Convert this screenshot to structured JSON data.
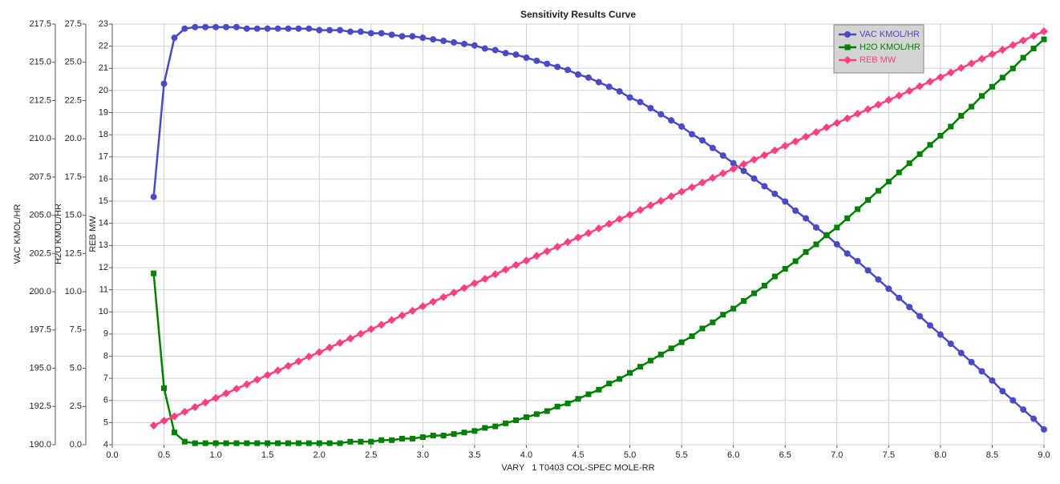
{
  "chart_data": {
    "type": "line",
    "title": "Sensitivity Results Curve",
    "x_label": "VARY   1 T0403 COL-SPEC MOLE-RR",
    "y_label": "VAC KMOL/HR",
    "y2_label": "H2O KMOL/HR",
    "y3_label": "REB MW",
    "x": [
      0.4,
      0.5,
      0.6,
      0.7,
      0.8,
      0.9,
      1.0,
      1.1,
      1.2,
      1.3,
      1.4,
      1.5,
      1.6,
      1.7,
      1.8,
      1.9,
      2.0,
      2.1,
      2.2,
      2.3,
      2.4,
      2.5,
      2.6,
      2.7,
      2.8,
      2.9,
      3.0,
      3.1,
      3.2,
      3.3,
      3.4,
      3.5,
      3.6,
      3.7,
      3.8,
      3.9,
      4.0,
      4.1,
      4.2,
      4.3,
      4.4,
      4.5,
      4.6,
      4.7,
      4.8,
      4.9,
      5.0,
      5.1,
      5.2,
      5.3,
      5.4,
      5.5,
      5.6,
      5.7,
      5.8,
      5.9,
      6.0,
      6.1,
      6.2,
      6.3,
      6.4,
      6.5,
      6.6,
      6.7,
      6.8,
      6.9,
      7.0,
      7.1,
      7.2,
      7.3,
      7.4,
      7.5,
      7.6,
      7.7,
      7.8,
      7.9,
      8.0,
      8.1,
      8.2,
      8.3,
      8.4,
      8.5,
      8.6,
      8.7,
      8.8,
      8.9,
      9.0
    ],
    "series": [
      {
        "name": "VAC KMOL/HR",
        "color": "#4a4ac4",
        "marker": "circle",
        "axis": "y",
        "values": [
          206.2,
          213.6,
          216.6,
          217.2,
          217.3,
          217.3,
          217.3,
          217.3,
          217.3,
          217.2,
          217.2,
          217.2,
          217.2,
          217.2,
          217.2,
          217.2,
          217.1,
          217.1,
          217.1,
          217.0,
          217.0,
          216.9,
          216.9,
          216.8,
          216.7,
          216.7,
          216.6,
          216.5,
          216.4,
          216.3,
          216.2,
          216.1,
          215.9,
          215.8,
          215.6,
          215.5,
          215.3,
          215.1,
          214.9,
          214.7,
          214.5,
          214.2,
          214.0,
          213.7,
          213.4,
          213.1,
          212.7,
          212.4,
          212.0,
          211.6,
          211.2,
          210.8,
          210.3,
          209.9,
          209.4,
          208.9,
          208.4,
          207.9,
          207.4,
          206.9,
          206.4,
          205.9,
          205.3,
          204.8,
          204.2,
          203.7,
          203.1,
          202.5,
          202.0,
          201.4,
          200.8,
          200.2,
          199.6,
          199.0,
          198.4,
          197.8,
          197.2,
          196.6,
          196.0,
          195.4,
          194.8,
          194.2,
          193.5,
          192.9,
          192.3,
          191.7,
          191.0
        ]
      },
      {
        "name": "H2O KMOL/HR",
        "color": "#008000",
        "marker": "square",
        "axis": "y2",
        "values": [
          11.2,
          3.7,
          0.8,
          0.2,
          0.1,
          0.1,
          0.1,
          0.1,
          0.1,
          0.1,
          0.1,
          0.1,
          0.1,
          0.1,
          0.1,
          0.1,
          0.1,
          0.1,
          0.1,
          0.2,
          0.2,
          0.2,
          0.3,
          0.3,
          0.4,
          0.4,
          0.5,
          0.6,
          0.6,
          0.7,
          0.8,
          0.9,
          1.1,
          1.2,
          1.4,
          1.6,
          1.8,
          2.0,
          2.2,
          2.5,
          2.7,
          3.0,
          3.3,
          3.6,
          4.0,
          4.3,
          4.7,
          5.1,
          5.5,
          5.9,
          6.3,
          6.7,
          7.1,
          7.6,
          8.0,
          8.5,
          8.9,
          9.4,
          9.9,
          10.4,
          11.0,
          11.5,
          12.0,
          12.6,
          13.1,
          13.7,
          14.2,
          14.8,
          15.4,
          16.0,
          16.6,
          17.2,
          17.8,
          18.4,
          19.0,
          19.6,
          20.2,
          20.8,
          21.5,
          22.1,
          22.8,
          23.4,
          24.0,
          24.6,
          25.3,
          25.9,
          26.5
        ]
      },
      {
        "name": "REB MW",
        "color": "#ff4080",
        "marker": "diamond",
        "axis": "y3",
        "values": [
          4.87,
          5.08,
          5.28,
          5.49,
          5.7,
          5.91,
          6.11,
          6.32,
          6.53,
          6.73,
          6.94,
          7.15,
          7.35,
          7.56,
          7.77,
          7.98,
          8.18,
          8.39,
          8.6,
          8.8,
          9.01,
          9.22,
          9.42,
          9.63,
          9.84,
          10.05,
          10.25,
          10.46,
          10.67,
          10.87,
          11.08,
          11.29,
          11.49,
          11.7,
          11.91,
          12.12,
          12.32,
          12.53,
          12.74,
          12.94,
          13.15,
          13.36,
          13.56,
          13.77,
          13.98,
          14.19,
          14.39,
          14.6,
          14.81,
          15.01,
          15.22,
          15.43,
          15.63,
          15.84,
          16.05,
          16.26,
          16.46,
          16.67,
          16.88,
          17.08,
          17.29,
          17.5,
          17.7,
          17.91,
          18.12,
          18.33,
          18.53,
          18.74,
          18.95,
          19.15,
          19.36,
          19.57,
          19.77,
          19.98,
          20.19,
          20.4,
          20.6,
          20.81,
          21.02,
          21.22,
          21.43,
          21.64,
          21.84,
          22.05,
          22.26,
          22.47,
          22.67
        ]
      }
    ],
    "xlim": [
      0,
      9
    ],
    "xticks": [
      {
        "value": 0,
        "label": "0.0"
      },
      0.5,
      {
        "value": 1,
        "label": "1.0"
      },
      1.5,
      {
        "value": 2,
        "label": "2.0"
      },
      2.5,
      {
        "value": 3,
        "label": "3.0"
      },
      3.5,
      {
        "value": 4,
        "label": "4.0"
      },
      4.5,
      {
        "value": 5,
        "label": "5.0"
      },
      5.5,
      {
        "value": 6,
        "label": "6.0"
      },
      6.5,
      {
        "value": 7,
        "label": "7.0"
      },
      7.5,
      {
        "value": 8,
        "label": "8.0"
      },
      8.5,
      {
        "value": 9,
        "label": "9.0"
      }
    ],
    "ylim": [
      190,
      217.5
    ],
    "yticks": [
      {
        "value": 190,
        "label": "190.0"
      },
      192.5,
      {
        "value": 195,
        "label": "195.0"
      },
      197.5,
      {
        "value": 200,
        "label": "200.0"
      },
      202.5,
      {
        "value": 205,
        "label": "205.0"
      },
      207.5,
      {
        "value": 210,
        "label": "210.0"
      },
      212.5,
      {
        "value": 215,
        "label": "215.0"
      },
      217.5
    ],
    "y2lim": [
      0,
      27.5
    ],
    "y2ticks": [
      {
        "value": 0,
        "label": "0.0"
      },
      2.5,
      {
        "value": 5,
        "label": "5.0"
      },
      7.5,
      {
        "value": 10,
        "label": "10.0"
      },
      12.5,
      {
        "value": 15,
        "label": "15.0"
      },
      17.5,
      {
        "value": 20,
        "label": "20.0"
      },
      22.5,
      {
        "value": 25,
        "label": "25.0"
      },
      27.5
    ],
    "y3lim": [
      4,
      23
    ],
    "y3ticks": [
      4,
      5,
      6,
      7,
      8,
      9,
      10,
      11,
      12,
      13,
      14,
      15,
      16,
      17,
      18,
      19,
      20,
      21,
      22,
      23
    ],
    "grid": true,
    "legend": "upper right"
  }
}
